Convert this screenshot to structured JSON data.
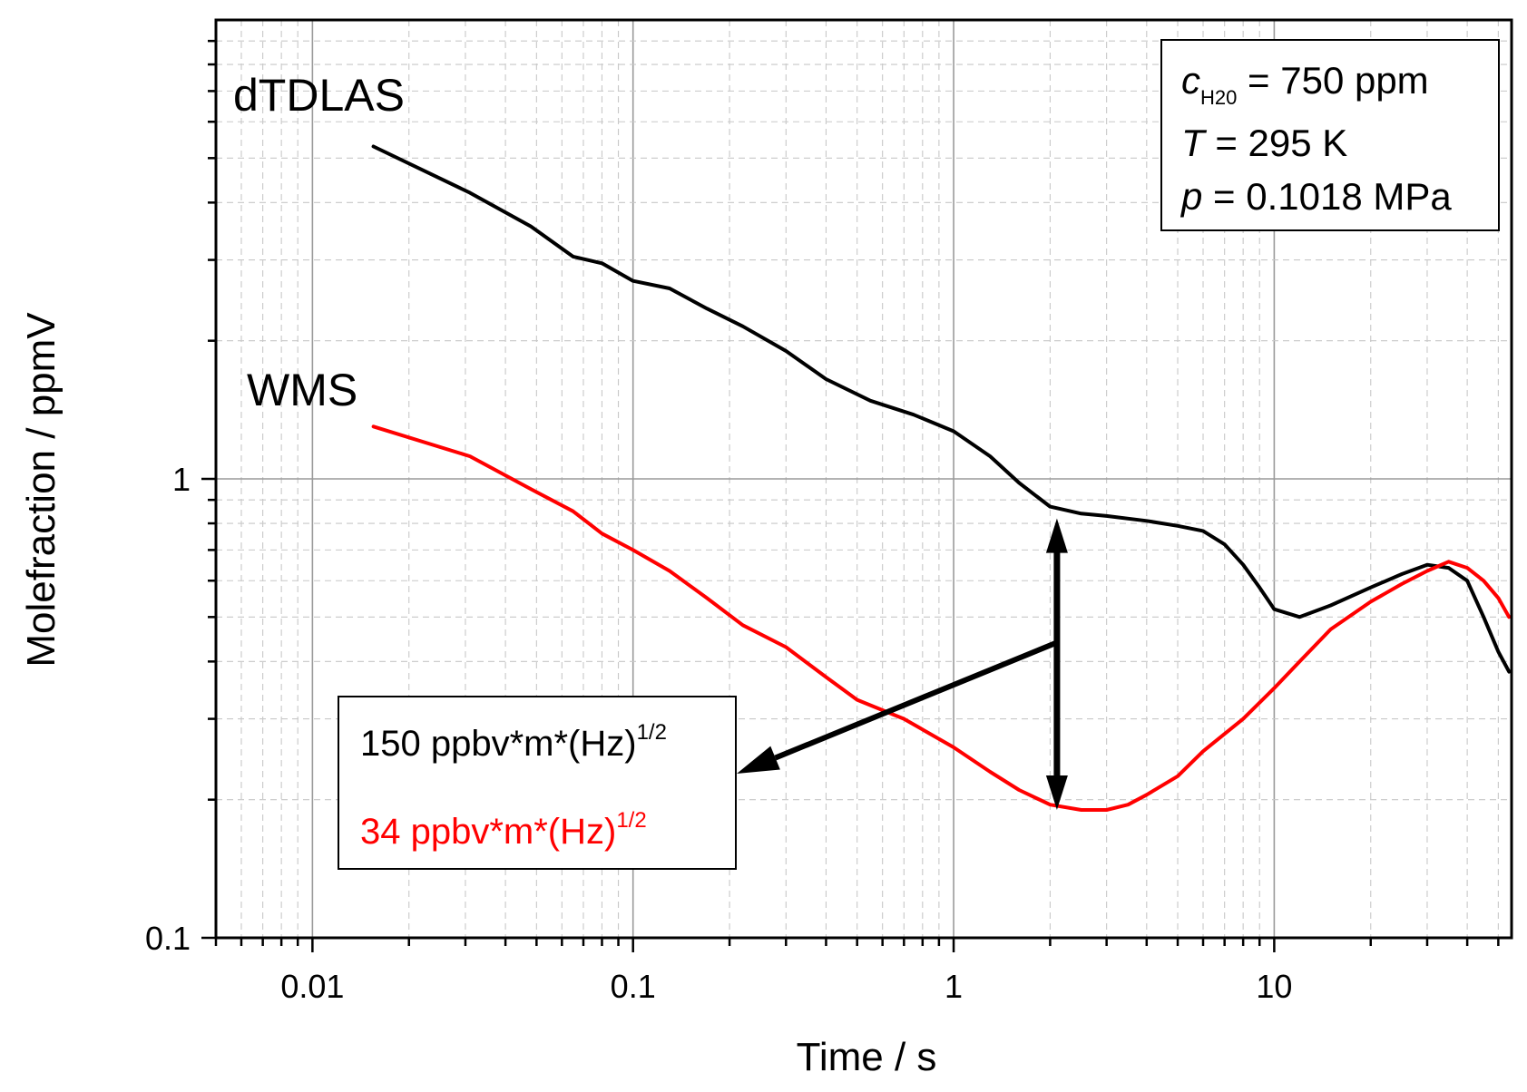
{
  "chart_data": {
    "type": "line",
    "x_scale": "log",
    "y_scale": "log",
    "xlabel": "Time / s",
    "ylabel": "Molefraction / ppmV",
    "xlim": [
      0.005,
      55
    ],
    "ylim": [
      0.1,
      10
    ],
    "x_ticks": [
      {
        "value": 0.01,
        "label": "0.01"
      },
      {
        "value": 0.1,
        "label": "0.1"
      },
      {
        "value": 1,
        "label": "1"
      },
      {
        "value": 10,
        "label": "10"
      }
    ],
    "y_ticks": [
      {
        "value": 0.1,
        "label": "0.1"
      },
      {
        "value": 1,
        "label": "1"
      }
    ],
    "grid": true,
    "series": [
      {
        "name": "dTDLAS",
        "color": "#000000",
        "points": [
          [
            0.0155,
            5.3
          ],
          [
            0.031,
            4.2
          ],
          [
            0.048,
            3.55
          ],
          [
            0.065,
            3.05
          ],
          [
            0.08,
            2.95
          ],
          [
            0.1,
            2.7
          ],
          [
            0.13,
            2.6
          ],
          [
            0.17,
            2.35
          ],
          [
            0.22,
            2.15
          ],
          [
            0.3,
            1.9
          ],
          [
            0.4,
            1.65
          ],
          [
            0.55,
            1.48
          ],
          [
            0.75,
            1.38
          ],
          [
            1.0,
            1.27
          ],
          [
            1.3,
            1.12
          ],
          [
            1.6,
            0.98
          ],
          [
            2.0,
            0.87
          ],
          [
            2.5,
            0.84
          ],
          [
            3.0,
            0.83
          ],
          [
            4.0,
            0.81
          ],
          [
            5.0,
            0.79
          ],
          [
            6.0,
            0.77
          ],
          [
            7.0,
            0.72
          ],
          [
            8.0,
            0.65
          ],
          [
            9.0,
            0.58
          ],
          [
            10.0,
            0.52
          ],
          [
            12.0,
            0.5
          ],
          [
            15.0,
            0.53
          ],
          [
            20.0,
            0.58
          ],
          [
            25.0,
            0.62
          ],
          [
            30.0,
            0.65
          ],
          [
            35.0,
            0.64
          ],
          [
            40.0,
            0.6
          ],
          [
            45.0,
            0.5
          ],
          [
            50.0,
            0.42
          ],
          [
            54.0,
            0.38
          ]
        ],
        "label": "dTDLAS"
      },
      {
        "name": "WMS",
        "color": "#ff0000",
        "points": [
          [
            0.0155,
            1.3
          ],
          [
            0.031,
            1.12
          ],
          [
            0.048,
            0.95
          ],
          [
            0.065,
            0.85
          ],
          [
            0.08,
            0.76
          ],
          [
            0.1,
            0.7
          ],
          [
            0.13,
            0.63
          ],
          [
            0.17,
            0.55
          ],
          [
            0.22,
            0.48
          ],
          [
            0.3,
            0.43
          ],
          [
            0.4,
            0.37
          ],
          [
            0.5,
            0.33
          ],
          [
            0.7,
            0.3
          ],
          [
            1.0,
            0.26
          ],
          [
            1.3,
            0.23
          ],
          [
            1.6,
            0.21
          ],
          [
            2.0,
            0.195
          ],
          [
            2.5,
            0.19
          ],
          [
            3.0,
            0.19
          ],
          [
            3.5,
            0.195
          ],
          [
            4.0,
            0.205
          ],
          [
            5.0,
            0.225
          ],
          [
            6.0,
            0.255
          ],
          [
            8.0,
            0.3
          ],
          [
            10.0,
            0.35
          ],
          [
            12.0,
            0.4
          ],
          [
            15.0,
            0.47
          ],
          [
            20.0,
            0.54
          ],
          [
            25.0,
            0.59
          ],
          [
            30.0,
            0.63
          ],
          [
            35.0,
            0.66
          ],
          [
            40.0,
            0.64
          ],
          [
            45.0,
            0.6
          ],
          [
            50.0,
            0.55
          ],
          [
            54.0,
            0.5
          ]
        ],
        "label": "WMS"
      }
    ],
    "annotations": {
      "conditions": {
        "line1_var": "c",
        "line1_sub": "H20",
        "line1_rest": " = 750 ppm",
        "line2_var": "T",
        "line2_rest": " = 295 K",
        "line3_var": "p",
        "line3_rest": " = 0.1018 MPa",
        "location": "top-right"
      },
      "sensitivity_box": {
        "dtdlas_text": "150 ppbv*m*(Hz)",
        "dtdlas_sup": "1/2",
        "dtdlas_color": "#000000",
        "wms_text": "34 ppbv*m*(Hz)",
        "wms_sup": "1/2",
        "wms_color": "#ff0000",
        "location": "lower-center"
      },
      "double_arrow": {
        "x": 2.1,
        "y_top": 0.82,
        "y_bottom": 0.19
      }
    }
  }
}
